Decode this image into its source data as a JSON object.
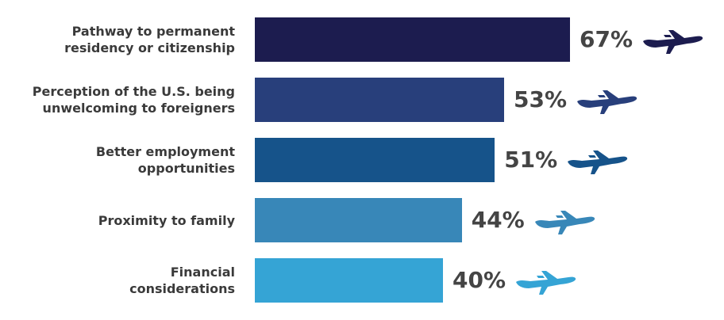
{
  "chart_data": {
    "type": "bar",
    "orientation": "horizontal",
    "categories": [
      "Pathway to permanent residency or citizenship",
      "Perception of the U.S. being unwelcoming to foreigners",
      "Better employment opportunities",
      "Proximity to family",
      "Financial considerations"
    ],
    "label_lines": [
      [
        "Pathway to permanent",
        "residency or citizenship"
      ],
      [
        "Perception of the U.S. being",
        "unwelcoming to foreigners"
      ],
      [
        "Better employment",
        "opportunities"
      ],
      [
        "Proximity to family"
      ],
      [
        "Financial",
        "considerations"
      ]
    ],
    "values": [
      67,
      53,
      51,
      44,
      40
    ],
    "value_labels": [
      "67%",
      "53%",
      "51%",
      "44%",
      "40%"
    ],
    "colors": [
      "#1c1c4f",
      "#283f7b",
      "#16538a",
      "#3887b8",
      "#35a4d5"
    ],
    "icon": "airplane-icon",
    "grid": false,
    "xlim": [
      0,
      67
    ]
  }
}
